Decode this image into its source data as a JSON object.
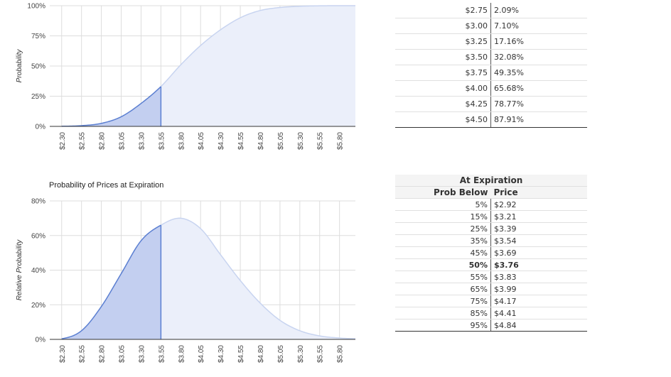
{
  "chart_data": [
    {
      "type": "area",
      "title": "",
      "xlabel": "",
      "ylabel": "Probability",
      "ylim": [
        0,
        100
      ],
      "y_ticks": [
        "0%",
        "25%",
        "50%",
        "75%",
        "100%"
      ],
      "categories": [
        "$2.30",
        "$2.55",
        "$2.80",
        "$3.05",
        "$3.30",
        "$3.55",
        "$3.80",
        "$4.05",
        "$4.30",
        "$4.55",
        "$4.80",
        "$5.05",
        "$5.30",
        "$5.55",
        "$5.80"
      ],
      "highlight_upto": 3.55,
      "series": [
        {
          "x": [
            2.3,
            2.55,
            2.8,
            3.05,
            3.3,
            3.55,
            3.8,
            4.05,
            4.3,
            4.55,
            4.8,
            5.05,
            5.3,
            5.55,
            5.8,
            6.0
          ],
          "values": [
            0.1,
            0.6,
            2.5,
            8,
            19,
            33,
            51,
            67,
            80,
            90,
            96,
            98.5,
            99.5,
            99.9,
            100,
            100
          ]
        }
      ],
      "grid": true,
      "colors": {
        "highlight_fill": "#c3cff0",
        "highlight_line": "#5b7fd1",
        "rest_fill": "#ebeffa",
        "rest_line": "#c8d4f0"
      }
    },
    {
      "type": "area",
      "title": "Probability of Prices at Expiration",
      "xlabel": "",
      "ylabel": "Relative Probability",
      "ylim": [
        0,
        80
      ],
      "y_ticks": [
        "0%",
        "20%",
        "40%",
        "60%",
        "80%"
      ],
      "categories": [
        "$2.30",
        "$2.55",
        "$2.80",
        "$3.05",
        "$3.30",
        "$3.55",
        "$3.80",
        "$4.05",
        "$4.30",
        "$4.55",
        "$4.80",
        "$5.05",
        "$5.30",
        "$5.55",
        "$5.80"
      ],
      "highlight_upto": 3.55,
      "series": [
        {
          "x": [
            2.3,
            2.55,
            2.8,
            3.05,
            3.3,
            3.55,
            3.8,
            4.05,
            4.3,
            4.55,
            4.8,
            5.05,
            5.3,
            5.55,
            5.8,
            6.0
          ],
          "values": [
            0.3,
            5,
            19,
            38,
            57,
            66,
            70,
            64,
            49,
            34,
            21,
            11,
            5,
            2,
            0.8,
            0.4
          ]
        }
      ],
      "grid": true,
      "colors": {
        "highlight_fill": "#c3cff0",
        "highlight_line": "#5b7fd1",
        "rest_fill": "#ebeffa",
        "rest_line": "#c8d4f0"
      }
    }
  ],
  "top_table": {
    "rows": [
      {
        "price": "$2.75",
        "prob": "2.09%"
      },
      {
        "price": "$3.00",
        "prob": "7.10%"
      },
      {
        "price": "$3.25",
        "prob": "17.16%"
      },
      {
        "price": "$3.50",
        "prob": "32.08%"
      },
      {
        "price": "$3.75",
        "prob": "49.35%"
      },
      {
        "price": "$4.00",
        "prob": "65.68%"
      },
      {
        "price": "$4.25",
        "prob": "78.77%"
      },
      {
        "price": "$4.50",
        "prob": "87.91%"
      }
    ]
  },
  "expiration_table": {
    "title": "At Expiration",
    "col_prob": "Prob Below",
    "col_price": "Price",
    "rows": [
      {
        "prob": "5%",
        "price": "$2.92",
        "bold": false
      },
      {
        "prob": "15%",
        "price": "$3.21",
        "bold": false
      },
      {
        "prob": "25%",
        "price": "$3.39",
        "bold": false
      },
      {
        "prob": "35%",
        "price": "$3.54",
        "bold": false
      },
      {
        "prob": "45%",
        "price": "$3.69",
        "bold": false
      },
      {
        "prob": "50%",
        "price": "$3.76",
        "bold": true
      },
      {
        "prob": "55%",
        "price": "$3.83",
        "bold": false
      },
      {
        "prob": "65%",
        "price": "$3.99",
        "bold": false
      },
      {
        "prob": "75%",
        "price": "$4.17",
        "bold": false
      },
      {
        "prob": "85%",
        "price": "$4.41",
        "bold": false
      },
      {
        "prob": "95%",
        "price": "$4.84",
        "bold": false
      }
    ]
  }
}
